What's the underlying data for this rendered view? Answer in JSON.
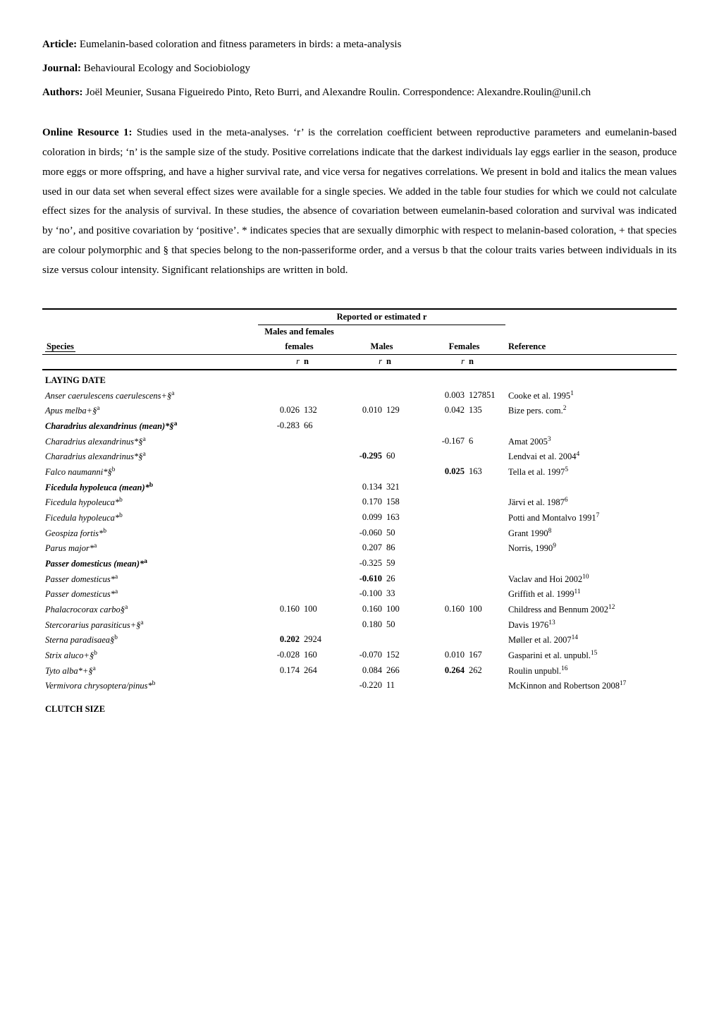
{
  "header": {
    "article_label": "Article:",
    "article_title": "Eumelanin-based coloration and fitness parameters in birds: a meta-analysis",
    "journal_label": "Journal:",
    "journal_title": "Behavioural Ecology and Sociobiology",
    "authors_label": "Authors:",
    "authors_text": "Joël Meunier, Susana Figueiredo Pinto, Reto Burri, and Alexandre Roulin. Correspondence: Alexandre.Roulin@unil.ch"
  },
  "online_resource": {
    "label": "Online Resource 1:",
    "text": " Studies used in the meta-analyses. ‘r’ is the correlation coefficient between reproductive parameters and eumelanin-based coloration in birds; ‘n’ is the sample size of the study. Positive correlations indicate that the darkest individuals lay eggs earlier in the season, produce more eggs or more offspring, and have a higher survival rate, and vice versa for negatives correlations. We present in bold and italics the mean values used in our data set when several effect sizes were available for a single species. We added in the table four studies for which we could not calculate effect sizes for the analysis of survival. In these studies, the absence of covariation between eumelanin-based coloration and survival was indicated by ‘no’, and positive covariation by ‘positive’. * indicates species that are sexually dimorphic with respect to melanin-based coloration, + that species are colour polymorphic and § that species belong to the non-passeriforme order, and a versus b that the colour traits varies between individuals in its size versus colour intensity. Significant relationships are written in bold."
  },
  "table": {
    "super_header": "Reported or estimated r",
    "group_headers": {
      "mf": "Males and females",
      "m": "Males",
      "f": "Females"
    },
    "col_headers": {
      "species": "Species",
      "r": "r",
      "n": "n",
      "ref": "Reference"
    },
    "sections": [
      {
        "title": "LAYING DATE"
      },
      {
        "title": "CLUTCH SIZE"
      }
    ],
    "rows": [
      {
        "sp": "Anser caerulescens caerulescens+§",
        "ssup": "a",
        "f_r": "0.003",
        "f_n": "127851",
        "ref": "Cooke et al. 1995",
        "rsup": "1"
      },
      {
        "sp": "Apus melba+§",
        "ssup": "a",
        "mf_r": "0.026",
        "mf_n": "132",
        "m_r": "0.010",
        "m_n": "129",
        "f_r": "0.042",
        "f_n": "135",
        "ref": "Bize pers. com.",
        "rsup": "2"
      },
      {
        "sp": "Charadrius alexandrinus (mean)*§",
        "ssup": "a",
        "bold": true,
        "mf_r": "-0.283",
        "mf_n": "66"
      },
      {
        "sp": "Charadrius alexandrinus*§",
        "ssup": "a",
        "f_r": "-0.167",
        "f_n": "6",
        "ref": "Amat 2005",
        "rsup": "3"
      },
      {
        "sp": "Charadrius alexandrinus*§",
        "ssup": "a",
        "m_r": "-0.295",
        "m_r_bold": true,
        "m_n": "60",
        "ref": "Lendvai et al. 2004",
        "rsup": "4"
      },
      {
        "sp": "Falco naumanni*§",
        "ssup": "b",
        "f_r": "0.025",
        "f_r_bold": true,
        "f_n": "163",
        "ref": "Tella et al. 1997",
        "rsup": "5"
      },
      {
        "sp": "Ficedula hypoleuca (mean)*",
        "ssup": "b",
        "bold": true,
        "m_r": "0.134",
        "m_n": "321"
      },
      {
        "sp": "Ficedula hypoleuca*",
        "ssup": "b",
        "m_r": "0.170",
        "m_n": "158",
        "ref": "Järvi et al. 1987",
        "rsup": "6"
      },
      {
        "sp": "Ficedula hypoleuca*",
        "ssup": "b",
        "m_r": "0.099",
        "m_n": "163",
        "ref": "Potti and Montalvo 1991",
        "rsup": "7"
      },
      {
        "sp": "Geospiza fortis*",
        "ssup": "b",
        "m_r": "-0.060",
        "m_n": "50",
        "ref": "Grant 1990",
        "rsup": "8"
      },
      {
        "sp": "Parus major*",
        "ssup": "a",
        "m_r": "0.207",
        "m_n": "86",
        "ref": "Norris, 1990",
        "rsup": "9"
      },
      {
        "sp": "Passer domesticus (mean)*",
        "ssup": "a",
        "bold": true,
        "m_r": "-0.325",
        "m_n": "59"
      },
      {
        "sp": "Passer domesticus*",
        "ssup": "a",
        "m_r": "-0.610",
        "m_r_bold": true,
        "m_n": "26",
        "ref": "Vaclav and Hoi 2002",
        "rsup": "10"
      },
      {
        "sp": "Passer domesticus*",
        "ssup": "a",
        "m_r": "-0.100",
        "m_n": "33",
        "ref": "Griffith et al. 1999",
        "rsup": "11"
      },
      {
        "sp": "Phalacrocorax carbo§",
        "ssup": "a",
        "mf_r": "0.160",
        "mf_n": "100",
        "m_r": "0.160",
        "m_n": "100",
        "f_r": "0.160",
        "f_n": "100",
        "ref": "Childress and Bennum 2002",
        "rsup": "12"
      },
      {
        "sp": "Stercorarius parasiticus+§",
        "ssup": "a",
        "m_r": "0.180",
        "m_n": "50",
        "ref": "Davis 1976",
        "rsup": "13"
      },
      {
        "sp": "Sterna paradisaea§",
        "ssup": "b",
        "mf_r": "0.202",
        "mf_r_bold": true,
        "mf_n": "2924",
        "ref": "Møller et al. 2007",
        "rsup": "14"
      },
      {
        "sp": "Strix aluco+§",
        "ssup": "b",
        "mf_r": "-0.028",
        "mf_n": "160",
        "m_r": "-0.070",
        "m_n": "152",
        "f_r": "0.010",
        "f_n": "167",
        "ref": "Gasparini et al. unpubl.",
        "rsup": "15"
      },
      {
        "sp": "Tyto alba*+§",
        "ssup": "a",
        "mf_r": "0.174",
        "mf_n": "264",
        "m_r": "0.084",
        "m_n": "266",
        "f_r": "0.264",
        "f_r_bold": true,
        "f_n": "262",
        "ref": "Roulin unpubl.",
        "rsup": "16"
      },
      {
        "sp": "Vermivora chrysoptera/pinus*",
        "ssup": "b",
        "m_r": "-0.220",
        "m_n": "11",
        "ref": "McKinnon and Robertson 2008",
        "rsup": "17"
      }
    ]
  }
}
